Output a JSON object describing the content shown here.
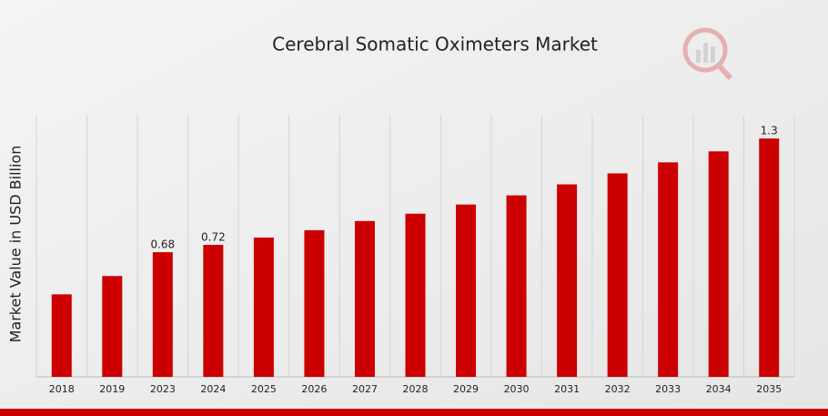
{
  "chart_data": {
    "type": "bar",
    "title": "Cerebral Somatic Oximeters Market",
    "y_label": "Market Value in USD Billion",
    "categories": [
      "2018",
      "2019",
      "2023",
      "2024",
      "2025",
      "2026",
      "2027",
      "2028",
      "2029",
      "2030",
      "2031",
      "2032",
      "2033",
      "2034",
      "2035"
    ],
    "values": [
      0.45,
      0.55,
      0.68,
      0.72,
      0.76,
      0.8,
      0.85,
      0.89,
      0.94,
      0.99,
      1.05,
      1.11,
      1.17,
      1.23,
      1.3
    ],
    "value_labels": [
      null,
      null,
      "0.68",
      "0.72",
      null,
      null,
      null,
      null,
      null,
      null,
      null,
      null,
      null,
      null,
      "1.3"
    ],
    "color": "#cc0000",
    "ylim": [
      0,
      1.43
    ],
    "grid": true
  }
}
